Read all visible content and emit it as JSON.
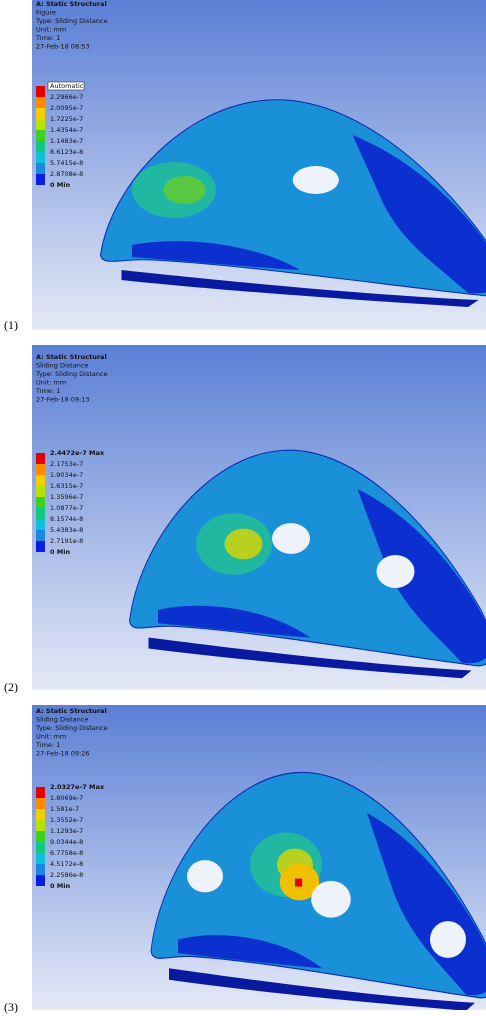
{
  "panels": [
    {
      "header": [
        "A: Static Structural",
        "Figure",
        "Type: Sliding Distance",
        "Unit: mm",
        "Time: 1",
        "27-Feb-18 08:53"
      ],
      "legend": [
        "Automatic",
        "2.2966e-7",
        "2.0095e-7",
        "1.7225e-7",
        "1.4354e-7",
        "1.1483e-7",
        "8.6123e-8",
        "5.7415e-8",
        "2.8708e-8",
        "0 Min"
      ],
      "caption": "(1)"
    },
    {
      "header": [
        "A: Static Structural",
        "Sliding Distance",
        "Type: Sliding Distance",
        "Unit: mm",
        "Time: 1",
        "27-Feb-18 09:13"
      ],
      "legend": [
        "2.4472e-7 Max",
        "2.1753e-7",
        "1.9034e-7",
        "1.6315e-7",
        "1.3596e-7",
        "1.0877e-7",
        "8.1574e-8",
        "5.4383e-8",
        "2.7191e-8",
        "0 Min"
      ],
      "caption": "(2)"
    },
    {
      "header": [
        "A: Static Structural",
        "Sliding Distance",
        "Type: Sliding Distance",
        "Unit: mm",
        "Time: 1",
        "27-Feb-18 09:26"
      ],
      "legend": [
        "2.0327e-7 Max",
        "1.8069e-7",
        "1.581e-7",
        "1.3552e-7",
        "1.1293e-7",
        "9.0344e-8",
        "6.7758e-8",
        "4.5172e-8",
        "2.2586e-8",
        "0 Min"
      ],
      "caption": "(3)"
    }
  ]
}
